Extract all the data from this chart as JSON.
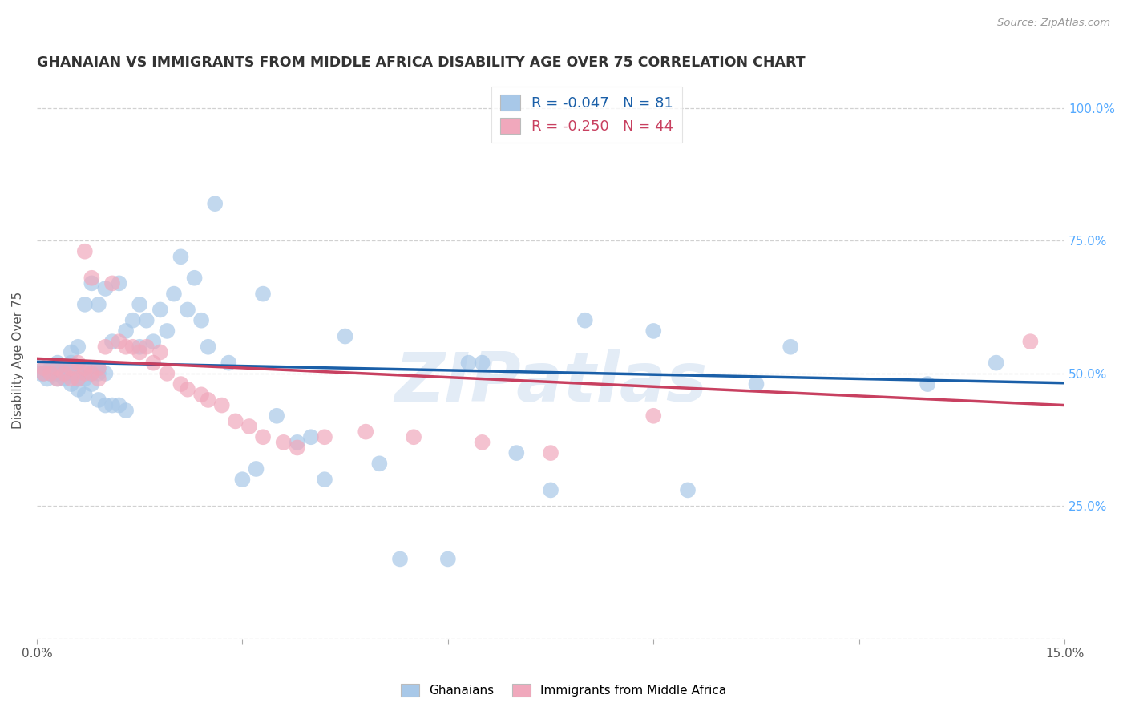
{
  "title": "GHANAIAN VS IMMIGRANTS FROM MIDDLE AFRICA DISABILITY AGE OVER 75 CORRELATION CHART",
  "source": "Source: ZipAtlas.com",
  "ylabel_text": "Disability Age Over 75",
  "xmin": 0.0,
  "xmax": 0.15,
  "ymin": 0.0,
  "ymax": 1.05,
  "xticks": [
    0.0,
    0.03,
    0.06,
    0.09,
    0.12,
    0.15
  ],
  "xticklabels": [
    "0.0%",
    "",
    "",
    "",
    "",
    "15.0%"
  ],
  "ytick_positions": [
    0.0,
    0.25,
    0.5,
    0.75,
    1.0
  ],
  "yticklabels_right": [
    "",
    "25.0%",
    "50.0%",
    "75.0%",
    "100.0%"
  ],
  "legend_r1": "-0.047",
  "legend_n1": "81",
  "legend_r2": "-0.250",
  "legend_n2": "44",
  "color_blue": "#A8C8E8",
  "color_pink": "#F0A8BC",
  "line_color_blue": "#1A5FA8",
  "line_color_pink": "#C84060",
  "background_color": "#ffffff",
  "grid_color": "#cccccc",
  "title_color": "#333333",
  "watermark": "ZIPatlas",
  "ghanaian_x": [
    0.0005,
    0.001,
    0.001,
    0.0015,
    0.002,
    0.002,
    0.002,
    0.003,
    0.003,
    0.003,
    0.003,
    0.004,
    0.004,
    0.004,
    0.004,
    0.005,
    0.005,
    0.005,
    0.005,
    0.005,
    0.006,
    0.006,
    0.006,
    0.006,
    0.007,
    0.007,
    0.007,
    0.007,
    0.008,
    0.008,
    0.008,
    0.009,
    0.009,
    0.009,
    0.009,
    0.01,
    0.01,
    0.01,
    0.011,
    0.011,
    0.012,
    0.012,
    0.013,
    0.013,
    0.014,
    0.015,
    0.015,
    0.016,
    0.017,
    0.018,
    0.019,
    0.02,
    0.021,
    0.022,
    0.023,
    0.024,
    0.025,
    0.026,
    0.028,
    0.03,
    0.032,
    0.033,
    0.035,
    0.038,
    0.04,
    0.042,
    0.045,
    0.05,
    0.053,
    0.06,
    0.063,
    0.065,
    0.07,
    0.075,
    0.08,
    0.09,
    0.095,
    0.105,
    0.11,
    0.13,
    0.14
  ],
  "ghanaian_y": [
    0.5,
    0.5,
    0.51,
    0.49,
    0.5,
    0.51,
    0.5,
    0.49,
    0.5,
    0.52,
    0.5,
    0.49,
    0.5,
    0.51,
    0.51,
    0.48,
    0.5,
    0.51,
    0.52,
    0.54,
    0.47,
    0.49,
    0.5,
    0.55,
    0.46,
    0.49,
    0.51,
    0.63,
    0.48,
    0.5,
    0.67,
    0.45,
    0.5,
    0.51,
    0.63,
    0.44,
    0.5,
    0.66,
    0.44,
    0.56,
    0.44,
    0.67,
    0.43,
    0.58,
    0.6,
    0.55,
    0.63,
    0.6,
    0.56,
    0.62,
    0.58,
    0.65,
    0.72,
    0.62,
    0.68,
    0.6,
    0.55,
    0.82,
    0.52,
    0.3,
    0.32,
    0.65,
    0.42,
    0.37,
    0.38,
    0.3,
    0.57,
    0.33,
    0.15,
    0.15,
    0.52,
    0.52,
    0.35,
    0.28,
    0.6,
    0.58,
    0.28,
    0.48,
    0.55,
    0.48,
    0.52
  ],
  "immigrant_x": [
    0.001,
    0.001,
    0.002,
    0.003,
    0.003,
    0.004,
    0.005,
    0.005,
    0.006,
    0.006,
    0.007,
    0.007,
    0.007,
    0.008,
    0.008,
    0.009,
    0.009,
    0.01,
    0.011,
    0.012,
    0.013,
    0.014,
    0.015,
    0.016,
    0.017,
    0.018,
    0.019,
    0.021,
    0.022,
    0.024,
    0.025,
    0.027,
    0.029,
    0.031,
    0.033,
    0.036,
    0.038,
    0.042,
    0.048,
    0.055,
    0.065,
    0.075,
    0.09,
    0.145
  ],
  "immigrant_y": [
    0.5,
    0.51,
    0.5,
    0.49,
    0.51,
    0.5,
    0.49,
    0.51,
    0.49,
    0.52,
    0.5,
    0.73,
    0.51,
    0.5,
    0.68,
    0.51,
    0.49,
    0.55,
    0.67,
    0.56,
    0.55,
    0.55,
    0.54,
    0.55,
    0.52,
    0.54,
    0.5,
    0.48,
    0.47,
    0.46,
    0.45,
    0.44,
    0.41,
    0.4,
    0.38,
    0.37,
    0.36,
    0.38,
    0.39,
    0.38,
    0.37,
    0.35,
    0.42,
    0.56
  ]
}
